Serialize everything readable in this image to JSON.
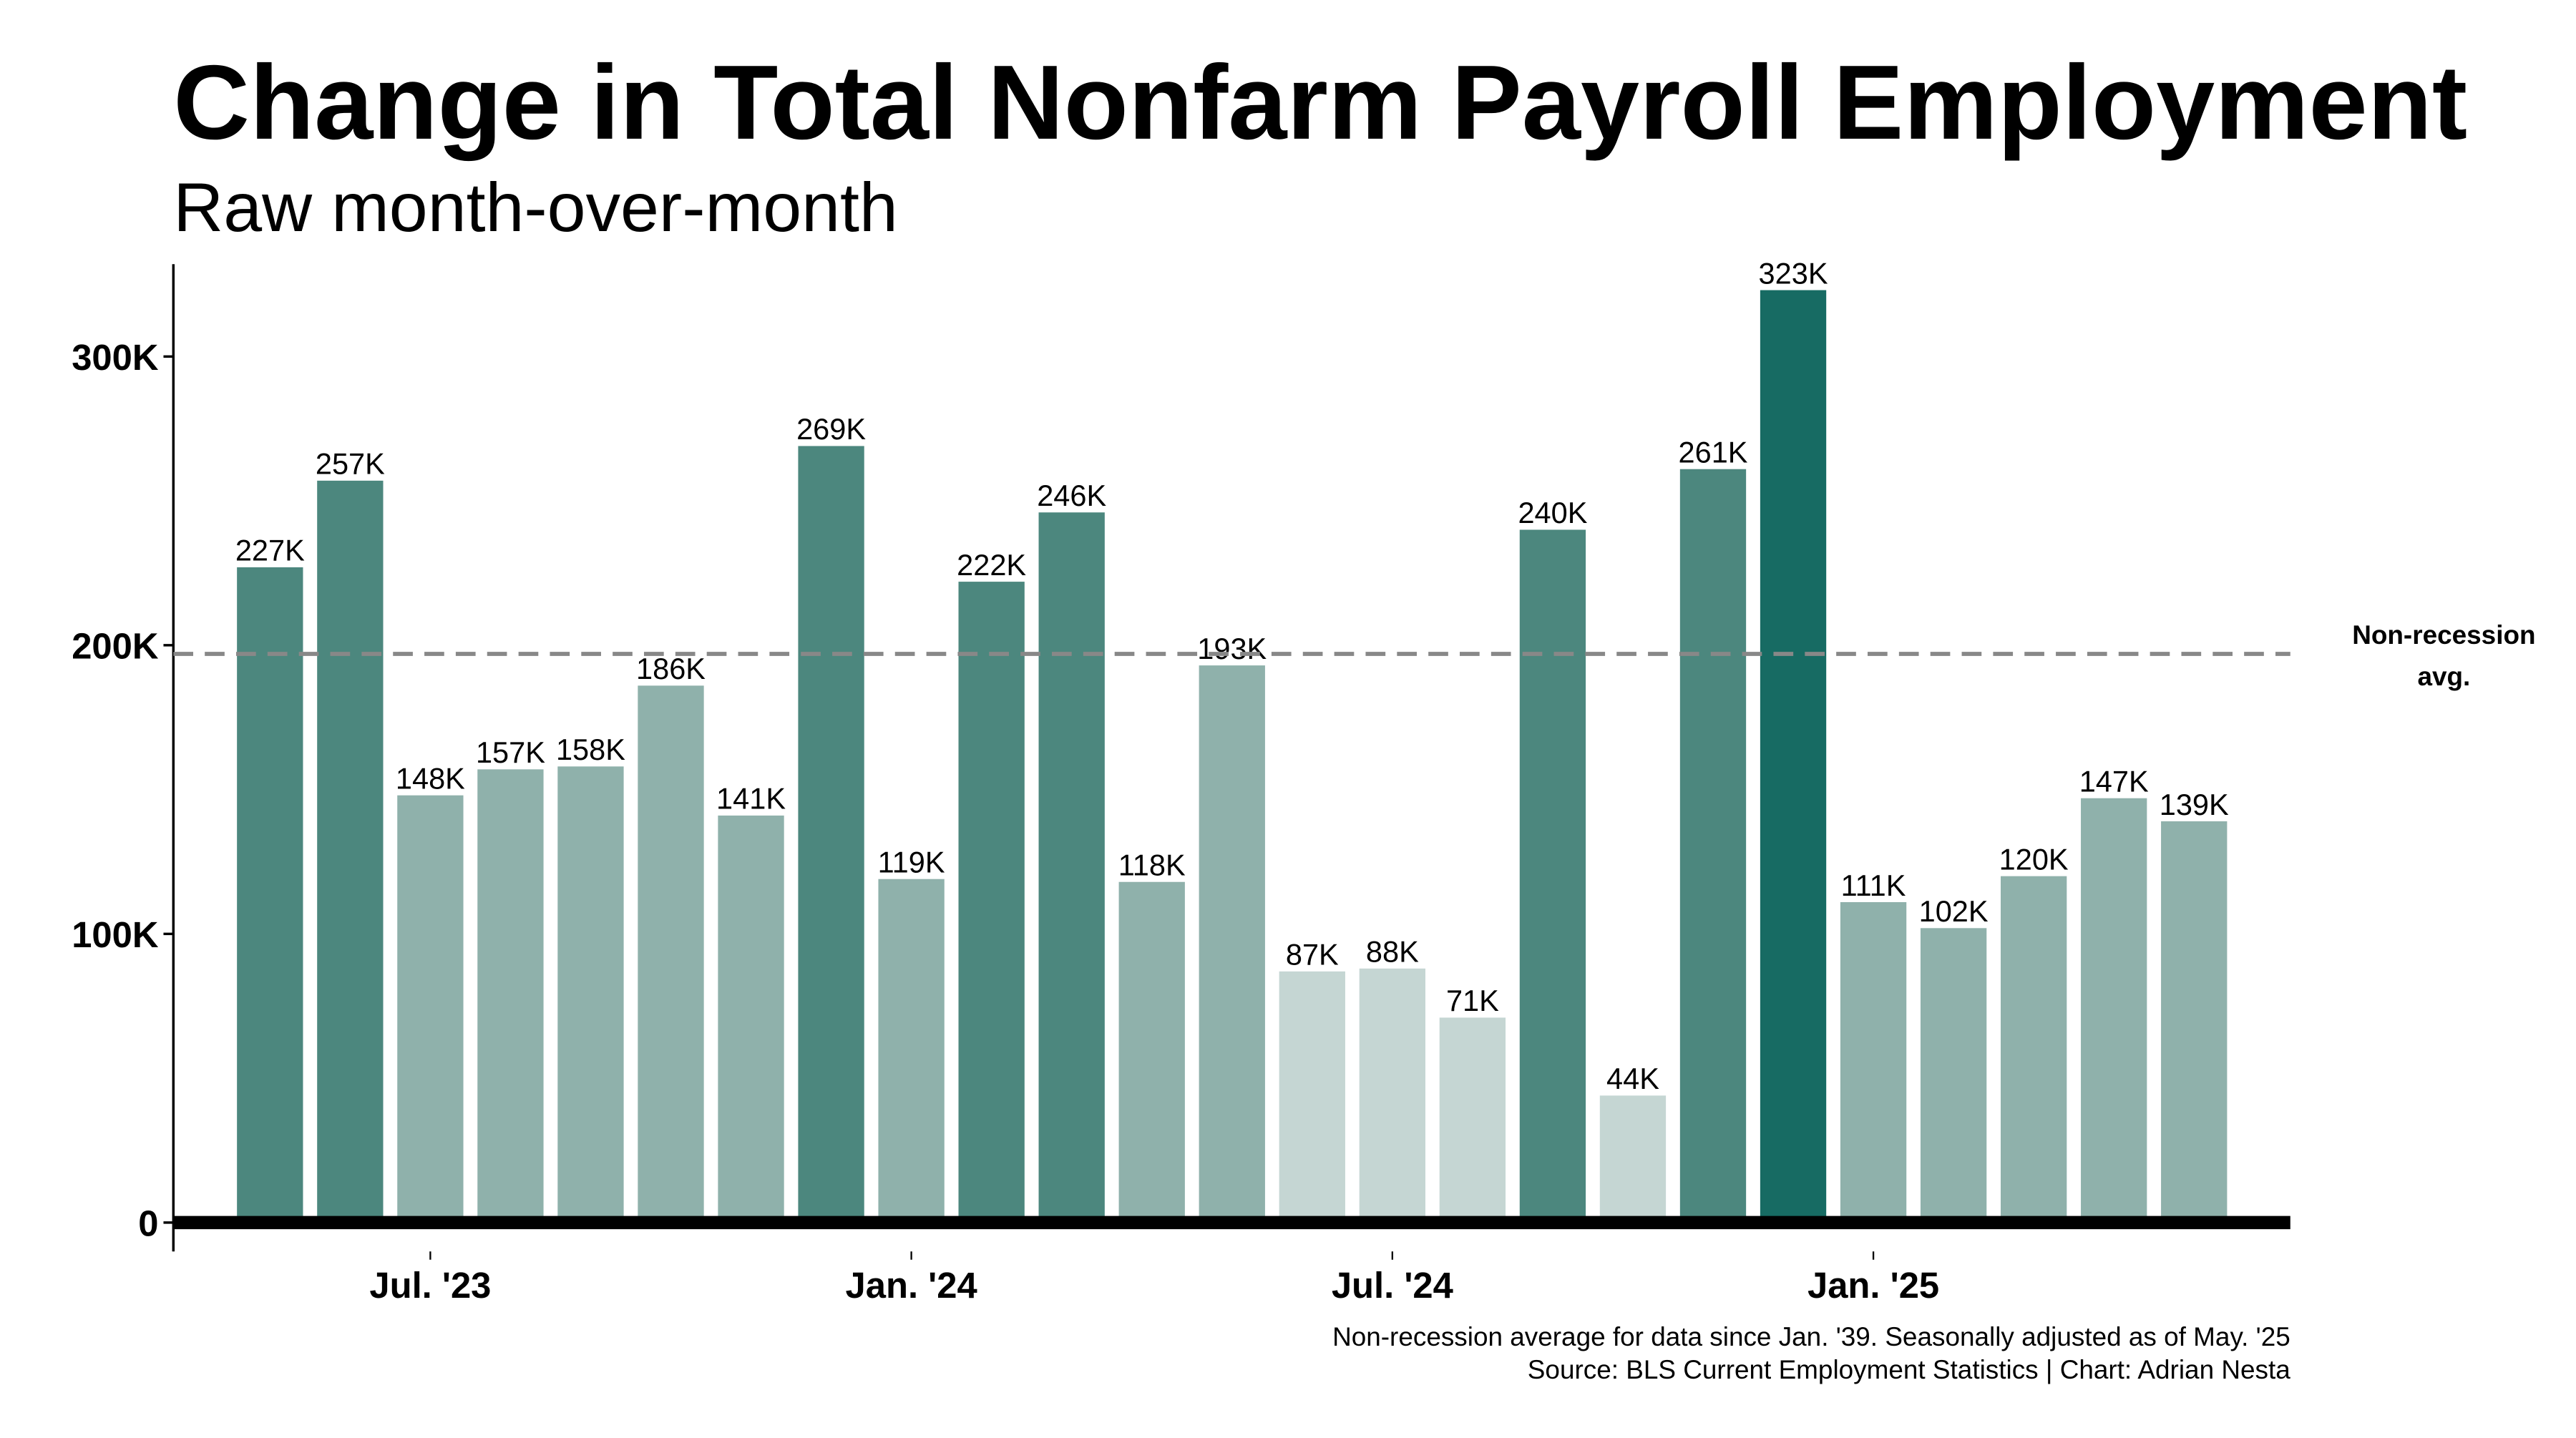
{
  "chart_data": {
    "type": "bar",
    "title": "Change in Total Nonfarm Payroll Employment",
    "subtitle": "Raw month-over-month",
    "categories": [
      null,
      null,
      "Jul. '23",
      null,
      null,
      null,
      null,
      null,
      "Jan. '24",
      null,
      null,
      null,
      null,
      null,
      "Jul. '24",
      null,
      null,
      null,
      null,
      null,
      "Jan. '25",
      null,
      null,
      null,
      null
    ],
    "values": [
      227000,
      257000,
      148000,
      157000,
      158000,
      186000,
      141000,
      269000,
      119000,
      222000,
      246000,
      118000,
      193000,
      87000,
      88000,
      71000,
      240000,
      44000,
      261000,
      323000,
      111000,
      102000,
      120000,
      147000,
      139000
    ],
    "value_labels": [
      "227K",
      "257K",
      "148K",
      "157K",
      "158K",
      "186K",
      "141K",
      "269K",
      "119K",
      "222K",
      "246K",
      "118K",
      "193K",
      "87K",
      "88K",
      "71K",
      "240K",
      "44K",
      "261K",
      "323K",
      "111K",
      "102K",
      "120K",
      "147K",
      "139K"
    ],
    "colors": [
      "#4c877e",
      "#4c877e",
      "#8fb1ab",
      "#8fb1ab",
      "#8fb1ab",
      "#8fb1ab",
      "#8fb1ab",
      "#4c877e",
      "#8fb1ab",
      "#4c877e",
      "#4c877e",
      "#8fb1ab",
      "#8fb1ab",
      "#c5d6d3",
      "#c5d6d3",
      "#c5d6d3",
      "#4c877e",
      "#c5d6d3",
      "#4c877e",
      "#176b63",
      "#8fb1ab",
      "#8fb1ab",
      "#8fb1ab",
      "#8fb1ab",
      "#8fb1ab"
    ],
    "ylim": [
      -10000,
      332000
    ],
    "yticks": [
      0,
      {
        "value": 100000,
        "label": "100K"
      },
      {
        "value": 200000,
        "label": "200K"
      },
      {
        "value": 300000,
        "label": "300K"
      }
    ],
    "average": 197000,
    "average_label": [
      "Non-recession",
      "avg."
    ],
    "notes": [
      "Non-recession average for data since Jan. '39. Seasonally adjusted as of May. '25",
      "Source: BLS Current Employment Statistics | Chart: Adrian Nesta"
    ]
  }
}
